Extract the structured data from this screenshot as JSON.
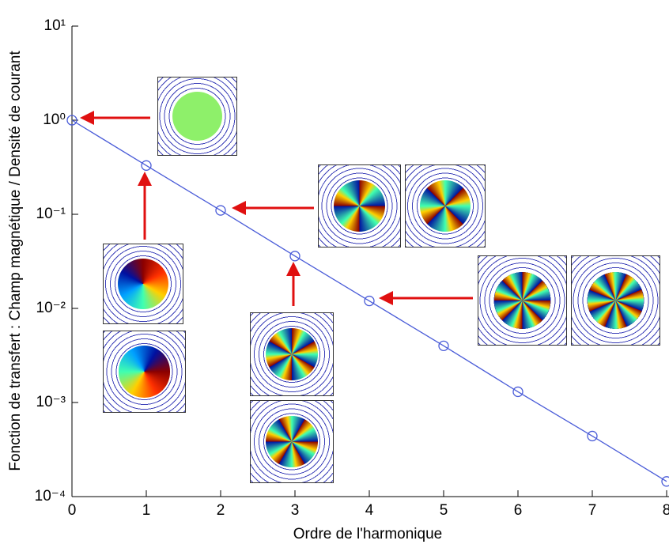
{
  "chart_data": {
    "type": "line",
    "x_label": "Ordre de l'harmonique",
    "y_label": "Fonction de transfert : Champ magnétique / Densité de courant",
    "x": [
      0,
      1,
      2,
      3,
      4,
      5,
      6,
      7,
      8
    ],
    "series": [
      {
        "color": "#4a5cd8",
        "values": [
          1,
          0.33,
          0.11,
          0.036,
          0.012,
          0.004,
          0.0013,
          0.00044,
          0.000145
        ]
      }
    ],
    "xlim": [
      0,
      8
    ],
    "xticks": [
      0,
      1,
      2,
      3,
      4,
      5,
      6,
      7,
      8
    ],
    "ylim": [
      0.0001,
      10
    ],
    "log_y": true,
    "yticks": [
      {
        "value": 0.0001,
        "label": "10⁻⁴"
      },
      {
        "value": 0.001,
        "label": "10⁻³"
      },
      {
        "value": 0.01,
        "label": "10⁻²"
      },
      {
        "value": 0.1,
        "label": "10⁻¹"
      },
      {
        "value": 1,
        "label": "10⁰"
      },
      {
        "value": 10,
        "label": "10¹"
      }
    ]
  }
}
